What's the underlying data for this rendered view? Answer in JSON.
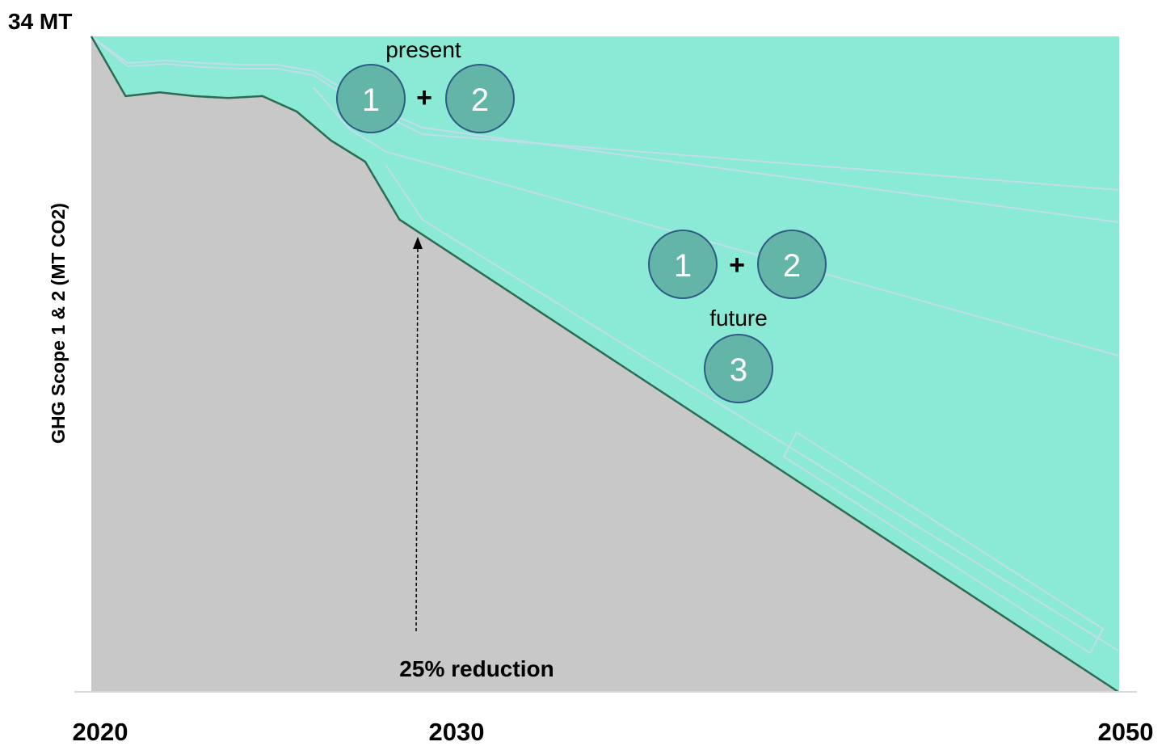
{
  "chart_data": {
    "type": "area",
    "top_label": "34 MT",
    "ylabel": "GHG Scope 1 & 2 (MT CO2)",
    "x_tick_labels": [
      "2020",
      "2030",
      "2050"
    ],
    "xlim": [
      2020,
      2050
    ],
    "ylim": [
      0,
      34
    ],
    "series": [
      {
        "x": [
          2020,
          2021,
          2022,
          2023,
          2024,
          2025,
          2026,
          2027,
          2028,
          2029,
          2050
        ],
        "values": [
          34.0,
          30.9,
          31.1,
          30.9,
          30.8,
          30.9,
          30.1,
          28.6,
          27.5,
          24.5,
          0.0
        ]
      }
    ],
    "annotations": {
      "reduction_label": "25% reduction",
      "present_label": "present",
      "future_label": "future",
      "plus_sign": "+",
      "present_badges": [
        "1",
        "2"
      ],
      "future_badges": [
        "1",
        "2"
      ],
      "future_scope3_badge": "3"
    },
    "colors": {
      "remaining_area": "#c8c8c8",
      "reduction_area": "#8aead5",
      "trajectory_line": "#2e6b55",
      "badge_fill": "#63b5a8",
      "badge_stroke": "#2f5a84",
      "wedge_line": "#c2dde9"
    }
  }
}
